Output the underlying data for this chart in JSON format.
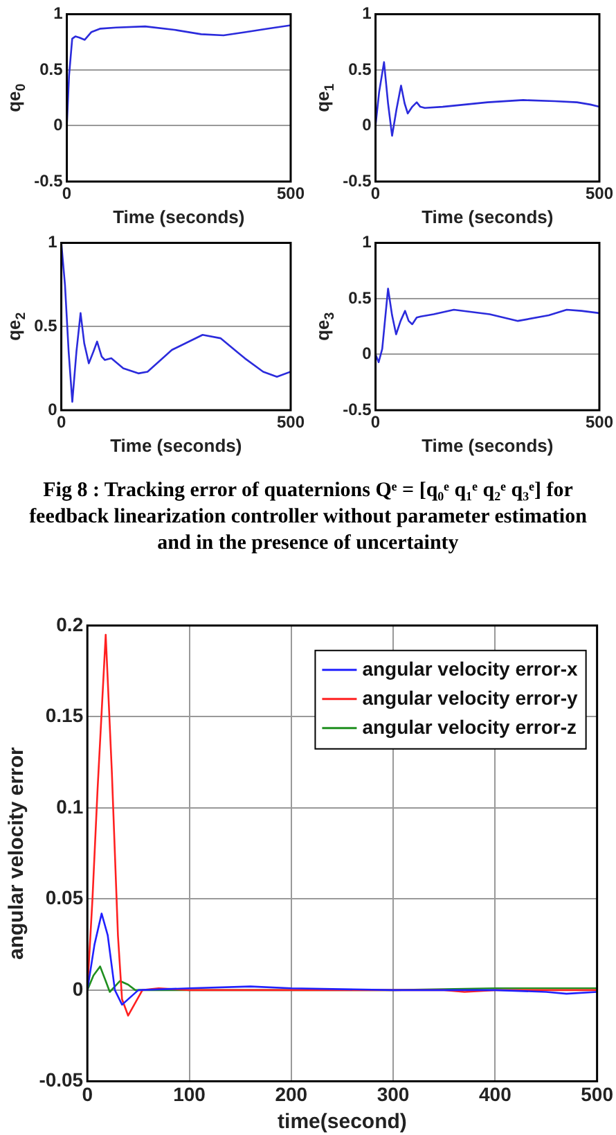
{
  "chart_data": [
    {
      "type": "line",
      "ylabel": "qe$_{0}$",
      "xlabel": "Time (seconds)",
      "xlim": [
        0,
        500
      ],
      "xticks": [
        0,
        500
      ],
      "ylim": [
        -0.5,
        1
      ],
      "yticks": [
        -0.5,
        0,
        0.5,
        1
      ],
      "grid": "y",
      "series": [
        {
          "color": "#2b2bdc",
          "x": [
            0,
            5,
            12,
            19,
            28,
            40,
            55,
            75,
            110,
            175,
            240,
            300,
            350,
            400,
            450,
            500
          ],
          "values": [
            0,
            0.45,
            0.78,
            0.8,
            0.79,
            0.77,
            0.84,
            0.87,
            0.88,
            0.89,
            0.86,
            0.82,
            0.81,
            0.84,
            0.87,
            0.9
          ]
        }
      ]
    },
    {
      "type": "line",
      "ylabel": "qe$_{1}$",
      "xlabel": "Time (seconds)",
      "xlim": [
        0,
        500
      ],
      "xticks": [
        0,
        500
      ],
      "ylim": [
        -0.5,
        1
      ],
      "yticks": [
        -0.5,
        0,
        0.5,
        1
      ],
      "grid": "y",
      "series": [
        {
          "color": "#2b2bdc",
          "x": [
            0,
            8,
            19,
            28,
            37,
            47,
            57,
            65,
            72,
            82,
            92,
            100,
            110,
            150,
            200,
            250,
            330,
            400,
            450,
            480,
            500
          ],
          "values": [
            0,
            0.3,
            0.57,
            0.2,
            -0.09,
            0.15,
            0.36,
            0.2,
            0.11,
            0.17,
            0.21,
            0.17,
            0.16,
            0.17,
            0.19,
            0.21,
            0.23,
            0.22,
            0.21,
            0.19,
            0.17
          ]
        }
      ]
    },
    {
      "type": "line",
      "ylabel": "qe$_{2}$",
      "xlabel": "Time (seconds)",
      "xlim": [
        0,
        500
      ],
      "xticks": [
        0,
        500
      ],
      "ylim": [
        0,
        1
      ],
      "yticks": [
        0,
        0.5,
        1
      ],
      "grid": "y",
      "series": [
        {
          "color": "#2b2bdc",
          "x": [
            0,
            8,
            16,
            24,
            33,
            42,
            50,
            60,
            70,
            78,
            88,
            95,
            109,
            135,
            168,
            188,
            241,
            308,
            347,
            400,
            440,
            470,
            500
          ],
          "values": [
            1,
            0.75,
            0.35,
            0.05,
            0.35,
            0.58,
            0.4,
            0.28,
            0.35,
            0.41,
            0.32,
            0.3,
            0.31,
            0.25,
            0.22,
            0.23,
            0.36,
            0.45,
            0.43,
            0.31,
            0.23,
            0.2,
            0.23
          ]
        }
      ]
    },
    {
      "type": "line",
      "ylabel": "qe$_{3}$",
      "xlabel": "Time (seconds)",
      "xlim": [
        0,
        500
      ],
      "xticks": [
        0,
        500
      ],
      "ylim": [
        -0.5,
        1
      ],
      "yticks": [
        -0.5,
        0,
        0.5,
        1
      ],
      "grid": "y",
      "series": [
        {
          "color": "#2b2bdc",
          "x": [
            0,
            7,
            15,
            28,
            37,
            46,
            56,
            66,
            74,
            82,
            92,
            101,
            130,
            175,
            255,
            318,
            387,
            427,
            460,
            500
          ],
          "values": [
            0,
            -0.07,
            0.05,
            0.59,
            0.35,
            0.18,
            0.3,
            0.39,
            0.3,
            0.27,
            0.33,
            0.34,
            0.36,
            0.4,
            0.36,
            0.3,
            0.35,
            0.4,
            0.39,
            0.37
          ]
        }
      ]
    },
    {
      "type": "other",
      "annotations": [
        "Fig 8 : Tracking error of quaternions Qᵉ = [q₀ᵉ q₁ᵉ q₂ᵉ q₃ᵉ] for feedback linearization controller without parameter estimation and in the presence of uncertainty"
      ]
    },
    {
      "type": "line",
      "ylabel": "angular velocity error",
      "xlabel": "time(second)",
      "xlim": [
        0,
        500
      ],
      "xticks": [
        0,
        100,
        200,
        300,
        400,
        500
      ],
      "ylim": [
        -0.05,
        0.2
      ],
      "yticks": [
        -0.05,
        0,
        0.05,
        0.1,
        0.15,
        0.2
      ],
      "grid": true,
      "legend": "top right",
      "series": [
        {
          "name": "angular velocity error-x",
          "color": "#2020ff",
          "x": [
            0,
            7,
            14,
            20,
            27,
            34,
            42,
            50,
            100,
            160,
            200,
            300,
            400,
            450,
            470,
            500
          ],
          "values": [
            0,
            0.025,
            0.042,
            0.03,
            0,
            -0.008,
            -0.004,
            0,
            0.001,
            0.002,
            0.001,
            0,
            0,
            -0.001,
            -0.002,
            -0.001
          ]
        },
        {
          "name": "angular velocity error-y",
          "color": "#ff2020",
          "x": [
            0,
            5,
            10,
            18,
            24,
            30,
            34,
            40,
            46,
            54,
            70,
            100,
            200,
            300,
            350,
            370,
            400,
            450,
            500
          ],
          "values": [
            0,
            0.05,
            0.11,
            0.195,
            0.12,
            0.03,
            -0.005,
            -0.014,
            -0.008,
            0,
            0.001,
            0,
            0,
            0,
            0,
            -0.001,
            0,
            0,
            0
          ]
        },
        {
          "name": "angular velocity error-z",
          "color": "#1f8f1f",
          "x": [
            0,
            6,
            12.5,
            18,
            22,
            27,
            32,
            40,
            47,
            100,
            200,
            300,
            400,
            450,
            500
          ],
          "values": [
            0,
            0.008,
            0.013,
            0.005,
            -0.001,
            0.002,
            0.005,
            0.003,
            0,
            0,
            0,
            0,
            0.001,
            0.001,
            0.001
          ]
        }
      ]
    }
  ]
}
